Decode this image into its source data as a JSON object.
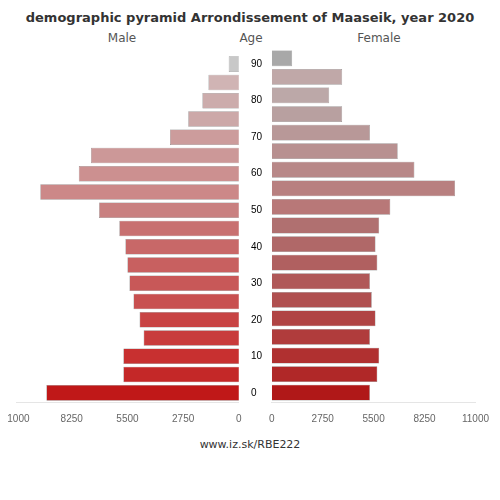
{
  "chart_data": {
    "type": "bar",
    "orientation": "horizontal",
    "title": "demographic pyramid Arrondissement of Maaseik, year 2020",
    "ylabel": "Age",
    "annotations": [
      "www.iz.sk/RBE222"
    ],
    "categories": [
      "0",
      null,
      "10",
      null,
      "20",
      null,
      "30",
      null,
      "40",
      null,
      "50",
      null,
      "60",
      null,
      "70",
      null,
      "80",
      null,
      "90"
    ],
    "series": [
      {
        "name": "Male",
        "values": [
          9500,
          5700,
          5700,
          4700,
          4900,
          5200,
          5400,
          5500,
          5600,
          5900,
          6900,
          9800,
          7900,
          7300,
          3400,
          2500,
          1800,
          1500,
          500
        ],
        "colors": [
          "#c01818",
          "#c42828",
          "#c83030",
          "#c83c3c",
          "#c84444",
          "#c85050",
          "#c85858",
          "#c86060",
          "#c86868",
          "#c87070",
          "#c98080",
          "#cc8888",
          "#cc9090",
          "#cc9898",
          "#cc9c9c",
          "#cca8a8",
          "#ccacac",
          "#d0b4b4",
          "#c8c8c8"
        ]
      },
      {
        "name": "Female",
        "values": [
          5300,
          5700,
          5800,
          5300,
          5600,
          5400,
          5300,
          5700,
          5600,
          5800,
          6400,
          9900,
          7700,
          6800,
          5300,
          3800,
          3100,
          3800,
          1100
        ],
        "colors": [
          "#b01818",
          "#b02828",
          "#b03030",
          "#b03c3c",
          "#b04444",
          "#b05050",
          "#b05858",
          "#b06060",
          "#b06868",
          "#b07070",
          "#b87878",
          "#b88080",
          "#b88888",
          "#b89090",
          "#b89898",
          "#b8a0a0",
          "#bca8a8",
          "#c0a8a8",
          "#a8a8a8"
        ]
      }
    ],
    "xlim": [
      0,
      11000
    ],
    "xticks": [
      0,
      2750,
      5500,
      8250,
      11000
    ],
    "grid": false
  }
}
